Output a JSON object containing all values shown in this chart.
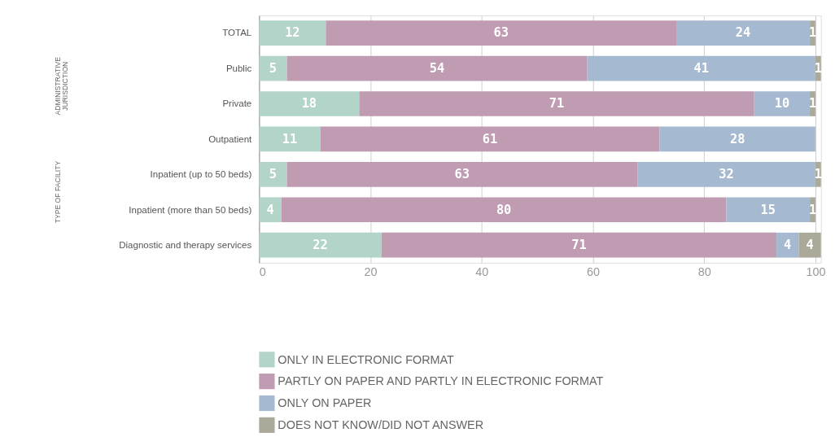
{
  "chart_data": {
    "type": "bar",
    "orientation": "horizontal",
    "stacked": true,
    "categories": [
      "TOTAL",
      "Public",
      "Private",
      "Outpatient",
      "Inpatient (up to 50 beds)",
      "Inpatient (more than 50 beds)",
      "Diagnostic and therapy services"
    ],
    "series": [
      {
        "name": "ONLY IN ELECTRONIC FORMAT",
        "color": "#b3d4c9",
        "values": [
          12,
          5,
          18,
          11,
          5,
          4,
          22
        ]
      },
      {
        "name": "PARTLY ON PAPER AND PARTLY IN ELECTRONIC FORMAT",
        "color": "#c09cb2",
        "values": [
          63,
          54,
          71,
          61,
          63,
          80,
          71
        ]
      },
      {
        "name": "ONLY ON PAPER",
        "color": "#a5bad0",
        "values": [
          24,
          41,
          10,
          28,
          32,
          15,
          4
        ]
      },
      {
        "name": "DOES NOT KNOW/DID NOT ANSWER",
        "color": "#aaa99a",
        "values": [
          1,
          1,
          1,
          null,
          1,
          1,
          4
        ]
      }
    ],
    "xlim": [
      0,
      101
    ],
    "xticks": [
      0,
      20,
      40,
      60,
      80,
      100
    ],
    "grid": "x",
    "legend": "bottom",
    "data_labels": true,
    "annotations": [
      "ADMINISTRATIVE JURISDICTION",
      "TYPE OF FACILITY"
    ]
  }
}
